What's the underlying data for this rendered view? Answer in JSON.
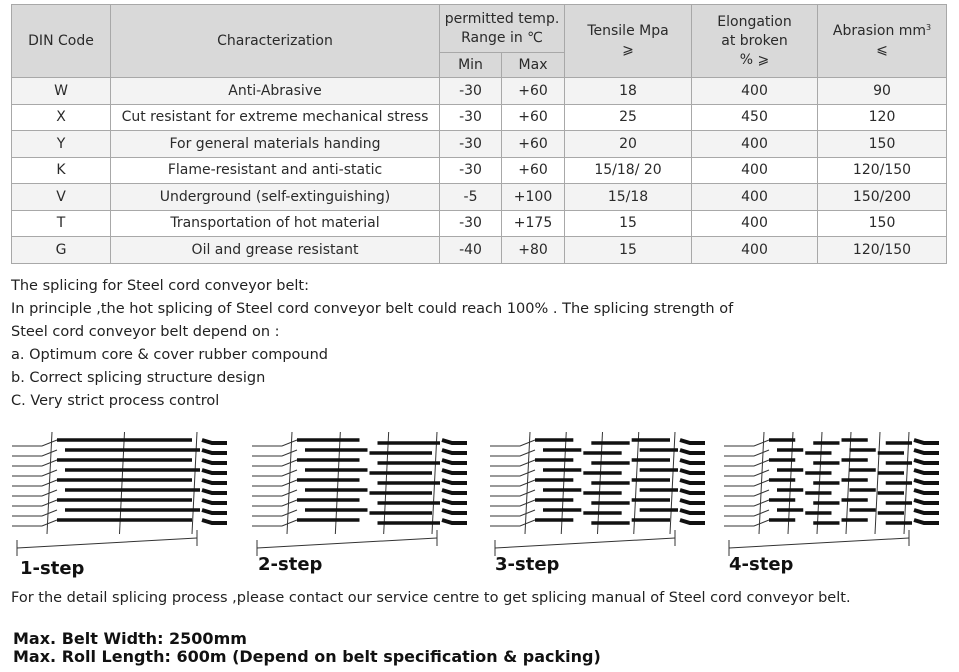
{
  "table": {
    "headers": {
      "din_code": "DIN Code",
      "characterization": "Characterization",
      "temp_line1": "permitted temp.",
      "temp_line2": "Range in ℃",
      "temp_min": "Min",
      "temp_max": "Max",
      "tensile_line1": "Tensile  Mpa",
      "tensile_line2": "⩾",
      "elong_line1": "Elongation",
      "elong_line2": "at broken",
      "elong_line3": "% ⩾",
      "abrasion_line1": "Abrasion  mm",
      "abrasion_sup": "3",
      "abrasion_line2": "⩽"
    },
    "rows": [
      {
        "code": "W",
        "desc": "Anti-Abrasive",
        "min": "-30",
        "max": "+60",
        "tensile": "18",
        "elong": "400",
        "abrasion": "90"
      },
      {
        "code": "X",
        "desc": "Cut resistant for extreme mechanical stress",
        "min": "-30",
        "max": "+60",
        "tensile": "25",
        "elong": "450",
        "abrasion": "120"
      },
      {
        "code": "Y",
        "desc": "For general materials handing",
        "min": "-30",
        "max": "+60",
        "tensile": "20",
        "elong": "400",
        "abrasion": "150"
      },
      {
        "code": "K",
        "desc": "Flame-resistant and anti-static",
        "min": "-30",
        "max": "+60",
        "tensile": "15/18/ 20",
        "elong": "400",
        "abrasion": "120/150"
      },
      {
        "code": "V",
        "desc": "Underground (self-extinguishing)",
        "min": "-5",
        "max": "+100",
        "tensile": "15/18",
        "elong": "400",
        "abrasion": "150/200"
      },
      {
        "code": "T",
        "desc": "Transportation of hot material",
        "min": "-30",
        "max": "+175",
        "tensile": "15",
        "elong": "400",
        "abrasion": "150"
      },
      {
        "code": "G",
        "desc": "Oil and grease resistant",
        "min": "-40",
        "max": "+80",
        "tensile": "15",
        "elong": "400",
        "abrasion": "120/150"
      }
    ]
  },
  "splicing": {
    "heading": "The splicing for  Steel cord conveyor belt:",
    "line1": "In principle ,the hot splicing of Steel cord conveyor belt could reach 100% . The splicing strength of",
    "line2": "Steel cord conveyor belt depend on :",
    "item_a": "a. Optimum core & cover rubber compound",
    "item_b": "b. Correct splicing structure design",
    "item_c": "C. Very strict process control"
  },
  "steps": [
    "1-step",
    "2-step",
    "3-step",
    "4-step"
  ],
  "contact_note": "For the detail splicing process ,please contact our service centre to get splicing manual of  Steel cord conveyor belt.",
  "max_width": "Max. Belt Width: 2500mm",
  "max_roll": "Max. Roll Length: 600m (Depend on belt specification & packing)"
}
